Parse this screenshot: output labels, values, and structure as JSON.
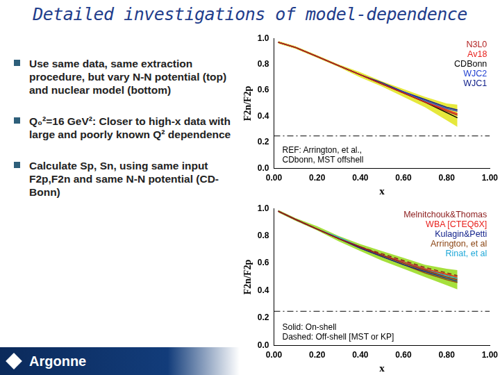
{
  "title": "Detailed investigations of model-dependence",
  "bullets": [
    "Use same data, same extraction procedure, but vary N-N potential (top) and nuclear model (bottom)",
    "Q₀²=16 GeV²: Closer to high-x data with large and poorly known Q² dependence",
    "Calculate Sp, Sn, using same input F2p,F2n and same N-N potential (CD-Bonn)"
  ],
  "logo": "Argonne",
  "chart_data": [
    {
      "type": "line",
      "x_label": "x",
      "y_label": "F2n/F2p",
      "x": [
        0.02,
        0.1,
        0.2,
        0.3,
        0.4,
        0.5,
        0.6,
        0.7,
        0.8,
        0.85
      ],
      "series": [
        {
          "name": "N3L0",
          "color": "#b22222",
          "line_style": "solid",
          "values": [
            0.97,
            0.93,
            0.86,
            0.79,
            0.72,
            0.65,
            0.58,
            0.51,
            0.44,
            0.41
          ]
        },
        {
          "name": "Av18",
          "color": "#e8201c",
          "line_style": "solid",
          "values": [
            0.97,
            0.93,
            0.86,
            0.79,
            0.72,
            0.65,
            0.58,
            0.51,
            0.45,
            0.42
          ]
        },
        {
          "name": "CDBonn",
          "color": "#000000",
          "line_style": "solid",
          "values": [
            0.97,
            0.93,
            0.86,
            0.79,
            0.72,
            0.65,
            0.58,
            0.51,
            0.43,
            0.39
          ]
        },
        {
          "name": "WJC2",
          "color": "#1f3fd0",
          "line_style": "solid",
          "values": [
            0.97,
            0.93,
            0.86,
            0.79,
            0.72,
            0.65,
            0.59,
            0.52,
            0.46,
            0.44
          ]
        },
        {
          "name": "WJC1",
          "color": "#10208a",
          "line_style": "solid",
          "values": [
            0.97,
            0.93,
            0.86,
            0.79,
            0.72,
            0.66,
            0.59,
            0.53,
            0.47,
            0.45
          ]
        }
      ],
      "band": {
        "color": "#e6e83c",
        "lower": [
          0.96,
          0.92,
          0.85,
          0.78,
          0.7,
          0.63,
          0.55,
          0.47,
          0.37,
          0.32
        ],
        "upper": [
          0.98,
          0.94,
          0.87,
          0.8,
          0.74,
          0.67,
          0.61,
          0.55,
          0.5,
          0.49
        ]
      },
      "hline": 0.25,
      "annotation": [
        "REF: Arrington, et al.,",
        "CDbonn, MST offshell"
      ],
      "xlim": [
        0,
        1
      ],
      "ylim": [
        0,
        1
      ],
      "xticks": [
        {
          "value": 0,
          "label": "0.00"
        },
        {
          "value": 0.2,
          "label": "0.20"
        },
        {
          "value": 0.4,
          "label": "0.40"
        },
        {
          "value": 0.6,
          "label": "0.60"
        },
        {
          "value": 0.8,
          "label": "0.80"
        },
        {
          "value": 1,
          "label": "1.00"
        }
      ],
      "yticks": [
        {
          "value": 0,
          "label": "0.0"
        },
        0.2,
        0.4,
        0.6,
        0.8,
        {
          "value": 1,
          "label": "1.0"
        }
      ],
      "grid": false,
      "legend": "top-right"
    },
    {
      "type": "line",
      "x_label": "x",
      "y_label": "F2n/F2p",
      "x": [
        0.02,
        0.1,
        0.2,
        0.3,
        0.4,
        0.5,
        0.6,
        0.7,
        0.8,
        0.85
      ],
      "series": [
        {
          "name": "Melnitchouk&Thomas",
          "color": "#8b1a1a",
          "line_style": "solid",
          "values": [
            0.98,
            0.92,
            0.85,
            0.78,
            0.72,
            0.66,
            0.6,
            0.55,
            0.5,
            0.48
          ]
        },
        {
          "name": "WBA [CTEQ6X]",
          "color": "#e8201c",
          "line_style": "solid",
          "values": [
            0.98,
            0.92,
            0.85,
            0.78,
            0.72,
            0.66,
            0.61,
            0.56,
            0.52,
            0.5
          ]
        },
        {
          "name": "Kulagin&Petti",
          "color": "#10208a",
          "line_style": "solid",
          "values": [
            0.98,
            0.92,
            0.85,
            0.78,
            0.71,
            0.65,
            0.59,
            0.54,
            0.49,
            0.47
          ]
        },
        {
          "name": "Arrington, et al",
          "color": "#8b4513",
          "line_style": "solid",
          "values": [
            0.98,
            0.92,
            0.85,
            0.78,
            0.71,
            0.65,
            0.59,
            0.53,
            0.48,
            0.46
          ]
        },
        {
          "name": "Rinat, et al",
          "color": "#1fa8d8",
          "line_style": "solid",
          "values": [
            0.98,
            0.92,
            0.85,
            0.79,
            0.72,
            0.66,
            0.61,
            0.56,
            0.51,
            0.49
          ]
        },
        {
          "name": "Melnitchouk&Thomas",
          "color": "#8b1a1a",
          "line_style": "dashed",
          "values": [
            0.98,
            0.92,
            0.85,
            0.78,
            0.72,
            0.67,
            0.62,
            0.57,
            0.53,
            0.51
          ]
        },
        {
          "name": "Arrington, et al",
          "color": "#8b4513",
          "line_style": "dashed",
          "values": [
            0.98,
            0.92,
            0.85,
            0.78,
            0.72,
            0.66,
            0.61,
            0.56,
            0.51,
            0.49
          ]
        }
      ],
      "band": {
        "color": "#a6e03c",
        "lower": [
          0.97,
          0.91,
          0.84,
          0.76,
          0.69,
          0.62,
          0.56,
          0.5,
          0.44,
          0.41
        ],
        "upper": [
          0.99,
          0.93,
          0.87,
          0.8,
          0.74,
          0.69,
          0.64,
          0.59,
          0.56,
          0.55
        ]
      },
      "hline": 0.25,
      "annotation": [
        "Solid: On-shell",
        "Dashed: Off-shell [MST or KP]"
      ],
      "xlim": [
        0,
        1
      ],
      "ylim": [
        0,
        1
      ],
      "xticks": [
        {
          "value": 0,
          "label": "0.00"
        },
        {
          "value": 0.2,
          "label": "0.20"
        },
        {
          "value": 0.4,
          "label": "0.40"
        },
        {
          "value": 0.6,
          "label": "0.60"
        },
        {
          "value": 0.8,
          "label": "0.80"
        },
        {
          "value": 1,
          "label": "1.00"
        }
      ],
      "yticks": [
        {
          "value": 0,
          "label": "0.0"
        },
        0.2,
        0.4,
        0.6,
        0.8,
        {
          "value": 1,
          "label": "1.0"
        }
      ],
      "grid": false,
      "legend": "top-right"
    }
  ]
}
